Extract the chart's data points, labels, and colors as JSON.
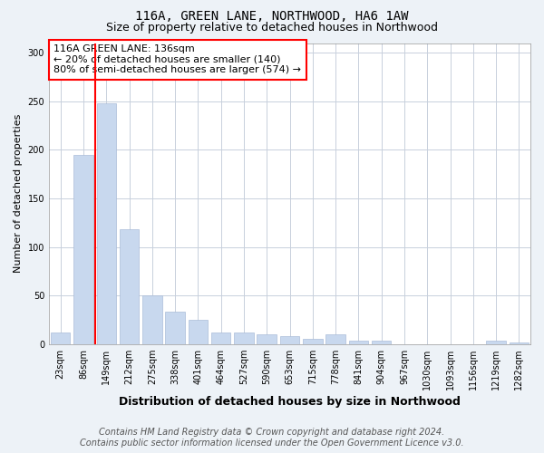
{
  "title1": "116A, GREEN LANE, NORTHWOOD, HA6 1AW",
  "title2": "Size of property relative to detached houses in Northwood",
  "xlabel": "Distribution of detached houses by size in Northwood",
  "ylabel": "Number of detached properties",
  "categories": [
    "23sqm",
    "86sqm",
    "149sqm",
    "212sqm",
    "275sqm",
    "338sqm",
    "401sqm",
    "464sqm",
    "527sqm",
    "590sqm",
    "653sqm",
    "715sqm",
    "778sqm",
    "841sqm",
    "904sqm",
    "967sqm",
    "1030sqm",
    "1093sqm",
    "1156sqm",
    "1219sqm",
    "1282sqm"
  ],
  "values": [
    12,
    195,
    248,
    118,
    50,
    33,
    25,
    12,
    12,
    10,
    8,
    5,
    10,
    3,
    3,
    0,
    0,
    0,
    0,
    3,
    2
  ],
  "bar_color": "#c8d8ee",
  "bar_edge_color": "#aabdd8",
  "red_line_x": 1.5,
  "annotation_text": "116A GREEN LANE: 136sqm\n← 20% of detached houses are smaller (140)\n80% of semi-detached houses are larger (574) →",
  "footer1": "Contains HM Land Registry data © Crown copyright and database right 2024.",
  "footer2": "Contains public sector information licensed under the Open Government Licence v3.0.",
  "ylim": [
    0,
    310
  ],
  "yticks": [
    0,
    50,
    100,
    150,
    200,
    250,
    300
  ],
  "bg_color": "#edf2f7",
  "plot_bg_color": "#ffffff",
  "grid_color": "#c8d0dc",
  "title1_fontsize": 10,
  "title2_fontsize": 9,
  "xlabel_fontsize": 9,
  "ylabel_fontsize": 8,
  "tick_fontsize": 7,
  "annotation_fontsize": 8,
  "footer_fontsize": 7
}
